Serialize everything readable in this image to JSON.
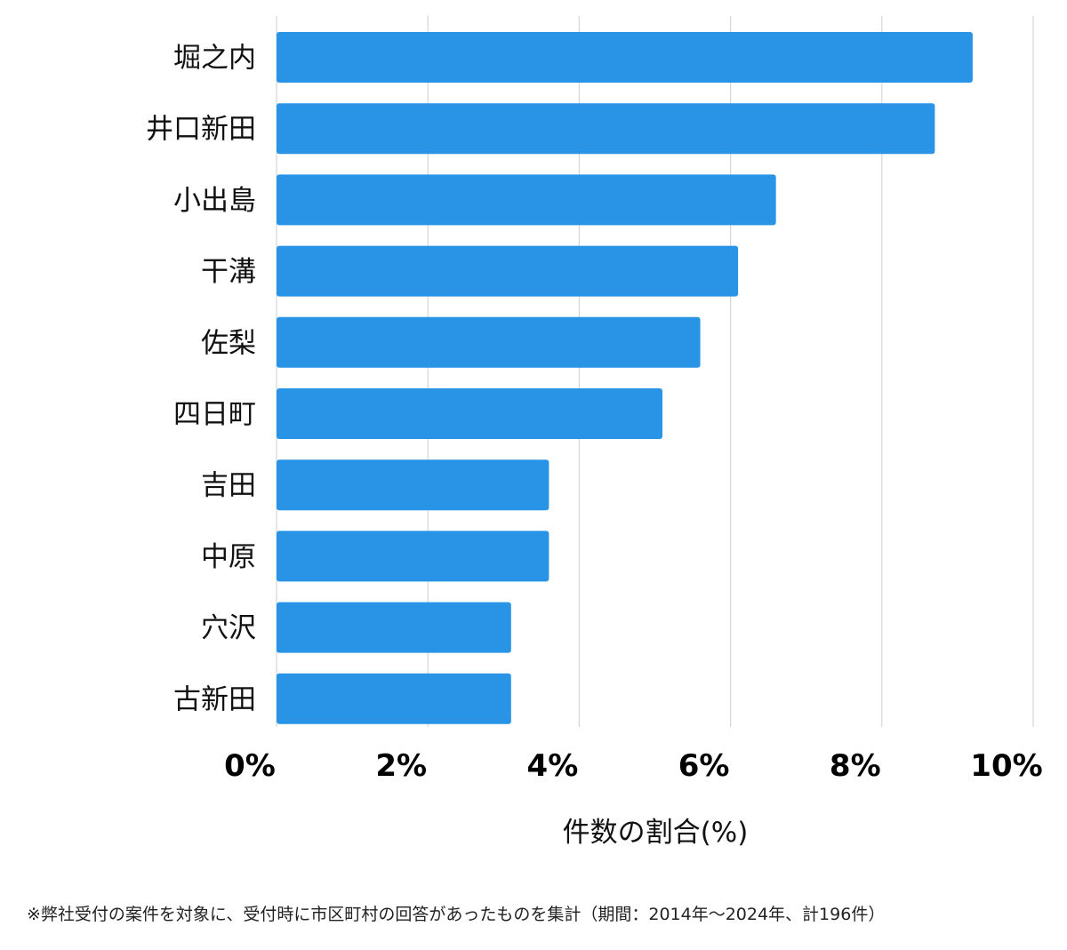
{
  "chart_data": {
    "type": "bar",
    "orientation": "horizontal",
    "categories": [
      "堀之内",
      "井口新田",
      "小出島",
      "干溝",
      "佐梨",
      "四日町",
      "吉田",
      "中原",
      "穴沢",
      "古新田"
    ],
    "values": [
      9.2,
      8.7,
      6.6,
      6.1,
      5.6,
      5.1,
      3.6,
      3.6,
      3.1,
      3.1
    ],
    "xlim": [
      0,
      10
    ],
    "xticks": [
      "0%",
      "2%",
      "4%",
      "6%",
      "8%",
      "10%"
    ],
    "xlabel": "件数の割合(%)",
    "ylabel": "",
    "title": "",
    "bar_color": "#2994e6",
    "grid": true
  },
  "footnote": "※弊社受付の案件を対象に、受付時に市区町村の回答があったものを集計（期間：2014年～2024年、計196件）"
}
